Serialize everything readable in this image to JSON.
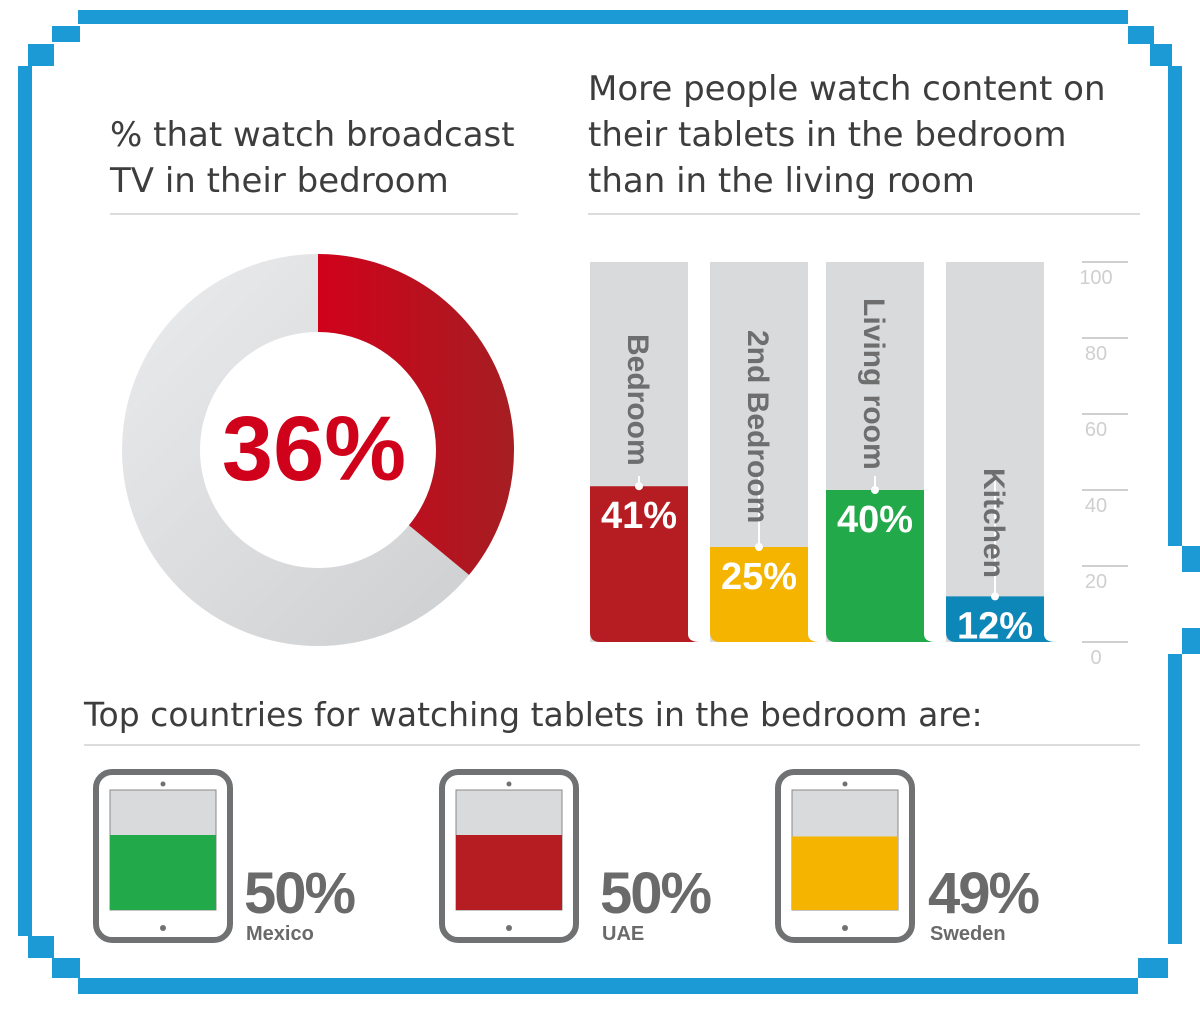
{
  "chart_data": [
    {
      "type": "pie",
      "title": "% that watch broadcast TV in their bedroom",
      "values": [
        36,
        64
      ],
      "center_label": "36%",
      "colors": {
        "value": "#d0021b",
        "value_dark": "#a51e22",
        "rest": "#e2e3e5"
      }
    },
    {
      "type": "bar",
      "title": "More people watch content on their tablets in the bedroom than in the living room",
      "categories": [
        "Bedroom",
        "2nd Bedroom",
        "Living room",
        "Kitchen"
      ],
      "values": [
        41,
        25,
        40,
        12
      ],
      "value_labels": [
        "41%",
        "25%",
        "40%",
        "12%"
      ],
      "colors": [
        "#b51d23",
        "#f4b400",
        "#22a94a",
        "#0d86b8"
      ],
      "yticks": [
        "0",
        "20",
        "40",
        "60",
        "80",
        "100"
      ],
      "ylim": [
        0,
        100
      ]
    },
    {
      "type": "bar",
      "title": "Top countries for watching tablets in the bedroom are:",
      "categories": [
        "Mexico",
        "UAE",
        "Sweden"
      ],
      "values": [
        50,
        50,
        49
      ],
      "value_labels": [
        "50%",
        "50%",
        "49%"
      ],
      "colors": [
        "#22a94a",
        "#b51d23",
        "#f4b400"
      ]
    }
  ],
  "colors": {
    "frame": "#1b9ad6",
    "text": "#3d3d3d",
    "track": "#d7d8da"
  }
}
